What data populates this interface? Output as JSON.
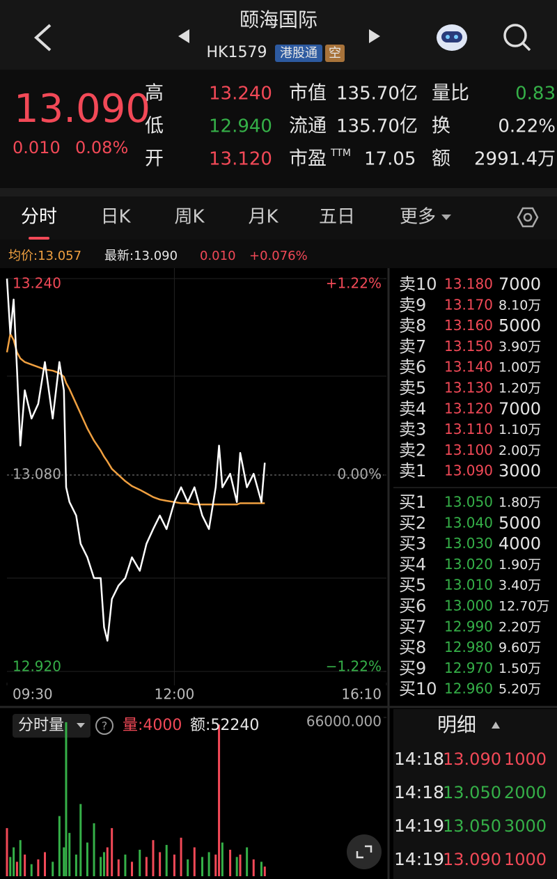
{
  "header": {
    "title": "颐海国际",
    "code": "HK1579",
    "tags": [
      {
        "text": "港股通",
        "color": "#2d5aa0"
      },
      {
        "text": "空",
        "color": "#a8733a"
      }
    ]
  },
  "quote": {
    "price": "13.090",
    "change": "0.010",
    "change_pct": "0.08%",
    "color": "#f24957",
    "stats": [
      [
        {
          "label": "高",
          "value": "13.240",
          "color": "#f24957"
        },
        {
          "label": "市值",
          "value": "135.70亿"
        },
        {
          "label": "量比",
          "value": "0.83",
          "color": "#35b048"
        }
      ],
      [
        {
          "label": "低",
          "value": "12.940",
          "color": "#35b048"
        },
        {
          "label": "流通",
          "value": "135.70亿"
        },
        {
          "label": "换",
          "value": "0.22%"
        }
      ],
      [
        {
          "label": "开",
          "value": "13.120",
          "color": "#f24957"
        },
        {
          "label": "市盈",
          "sup": "TTM",
          "value": "17.05"
        },
        {
          "label": "额",
          "value": "2991.4万"
        }
      ]
    ]
  },
  "tabs": {
    "items": [
      "分时",
      "日K",
      "周K",
      "月K",
      "五日",
      "更多"
    ],
    "active": 0
  },
  "info": {
    "avg": "均价:13.057",
    "last": "最新:13.090",
    "change": "0.010",
    "change_pct": "+0.076%"
  },
  "chart_data": [
    {
      "type": "line",
      "xlim": [
        0,
        340
      ],
      "xticks": [
        {
          "value": 0,
          "label": "09:30"
        },
        {
          "value": 150,
          "label": "12:00"
        },
        {
          "value": 340,
          "label": "16:10"
        }
      ],
      "ylim": [
        12.92,
        13.24
      ],
      "yticks": [
        {
          "value": 13.24,
          "label": "13.240"
        },
        {
          "value": 13.08,
          "label": "13.080"
        },
        {
          "value": 12.92,
          "label": "12.920"
        }
      ],
      "y2lim": [
        -1.22,
        1.22
      ],
      "y2ticks": [
        {
          "value": 1.22,
          "label": "+1.22%"
        },
        {
          "value": 0,
          "label": "0.00%"
        },
        {
          "value": -1.22,
          "label": "−1.22%"
        }
      ],
      "x": [
        0,
        3,
        6,
        9,
        12,
        16,
        22,
        28,
        34,
        41,
        47,
        51,
        53,
        56,
        62,
        66,
        72,
        78,
        84,
        87,
        90,
        94,
        100,
        106,
        112,
        119,
        125,
        131,
        137,
        143,
        150,
        156,
        162,
        168,
        175,
        181,
        187,
        190,
        193,
        200,
        206,
        209,
        215,
        221,
        228,
        231
      ],
      "series": [
        {
          "color": "#ffffff",
          "values": [
            13.24,
            13.195,
            13.223,
            13.166,
            13.104,
            13.149,
            13.126,
            13.138,
            13.172,
            13.126,
            13.172,
            13.149,
            13.07,
            13.058,
            13.047,
            13.024,
            13.013,
            12.996,
            12.996,
            12.956,
            12.945,
            12.979,
            12.99,
            12.996,
            13.013,
            13.002,
            13.024,
            13.036,
            13.047,
            13.036,
            13.058,
            13.07,
            13.058,
            13.07,
            13.047,
            13.036,
            13.07,
            13.104,
            13.07,
            13.081,
            13.058,
            13.098,
            13.07,
            13.081,
            13.058,
            13.09
          ]
        },
        {
          "color": "#f0a040",
          "values": [
            13.18,
            13.195,
            13.19,
            13.18,
            13.175,
            13.172,
            13.17,
            13.168,
            13.166,
            13.165,
            13.163,
            13.16,
            13.155,
            13.15,
            13.138,
            13.13,
            13.118,
            13.108,
            13.1,
            13.095,
            13.091,
            13.085,
            13.08,
            13.075,
            13.071,
            13.068,
            13.065,
            13.062,
            13.06,
            13.059,
            13.058,
            13.057,
            13.057,
            13.056,
            13.056,
            13.056,
            13.056,
            13.056,
            13.056,
            13.056,
            13.056,
            13.057,
            13.057,
            13.057,
            13.057,
            13.057
          ]
        }
      ]
    },
    {
      "type": "bar",
      "title": "分时量",
      "labels": [
        "量:4000",
        "额:52240"
      ],
      "xlim": [
        0,
        340
      ],
      "ylim": [
        0,
        66000
      ],
      "yticks": [
        {
          "value": 66000,
          "label": "66000.000"
        }
      ],
      "x": [
        0,
        3,
        6,
        9,
        12,
        16,
        22,
        28,
        34,
        41,
        47,
        51,
        53,
        56,
        62,
        66,
        72,
        78,
        84,
        87,
        90,
        94,
        100,
        106,
        112,
        119,
        125,
        131,
        137,
        143,
        150,
        156,
        162,
        168,
        175,
        181,
        187,
        190,
        193,
        200,
        206,
        209,
        215,
        221,
        228,
        231
      ],
      "values": [
        20000,
        8000,
        12000,
        6000,
        15000,
        9000,
        5000,
        7000,
        10000,
        6000,
        25000,
        12000,
        64000,
        18000,
        9000,
        30000,
        14000,
        22000,
        8000,
        10000,
        12000,
        20000,
        7000,
        9000,
        6000,
        11000,
        8000,
        15000,
        10000,
        13000,
        9000,
        16000,
        7000,
        12000,
        8000,
        10000,
        9000,
        63000,
        14000,
        11000,
        8000,
        9000,
        12000,
        7000,
        6000,
        4000
      ],
      "colors": [
        "#f24957",
        "#35b048",
        "#35b048",
        "#f24957",
        "#35b048",
        "#f24957",
        "#35b048",
        "#f24957",
        "#f24957",
        "#35b048",
        "#35b048",
        "#35b048",
        "#35b048",
        "#35b048",
        "#35b048",
        "#35b048",
        "#35b048",
        "#35b048",
        "#35b048",
        "#35b048",
        "#f24957",
        "#f24957",
        "#f24957",
        "#35b048",
        "#f24957",
        "#35b048",
        "#f24957",
        "#f24957",
        "#f24957",
        "#35b048",
        "#f24957",
        "#f24957",
        "#35b048",
        "#f24957",
        "#35b048",
        "#35b048",
        "#f24957",
        "#f24957",
        "#35b048",
        "#f24957",
        "#35b048",
        "#f24957",
        "#35b048",
        "#f24957",
        "#35b048",
        "#f24957"
      ]
    }
  ],
  "order_book": {
    "asks": [
      {
        "label": "卖10",
        "price": "13.180",
        "volume": "7000",
        "color": "#f24957"
      },
      {
        "label": "卖9",
        "price": "13.170",
        "volume": "8.10万",
        "color": "#f24957"
      },
      {
        "label": "卖8",
        "price": "13.160",
        "volume": "5000",
        "color": "#f24957"
      },
      {
        "label": "卖7",
        "price": "13.150",
        "volume": "3.90万",
        "color": "#f24957"
      },
      {
        "label": "卖6",
        "price": "13.140",
        "volume": "1.00万",
        "color": "#f24957"
      },
      {
        "label": "卖5",
        "price": "13.130",
        "volume": "1.20万",
        "color": "#f24957"
      },
      {
        "label": "卖4",
        "price": "13.120",
        "volume": "7000",
        "color": "#f24957"
      },
      {
        "label": "卖3",
        "price": "13.110",
        "volume": "1.10万",
        "color": "#f24957"
      },
      {
        "label": "卖2",
        "price": "13.100",
        "volume": "2.00万",
        "color": "#f24957"
      },
      {
        "label": "卖1",
        "price": "13.090",
        "volume": "3000",
        "color": "#f24957"
      }
    ],
    "bids": [
      {
        "label": "买1",
        "price": "13.050",
        "volume": "1.80万",
        "color": "#35b048"
      },
      {
        "label": "买2",
        "price": "13.040",
        "volume": "5000",
        "color": "#35b048"
      },
      {
        "label": "买3",
        "price": "13.030",
        "volume": "4000",
        "color": "#35b048"
      },
      {
        "label": "买4",
        "price": "13.020",
        "volume": "1.90万",
        "color": "#35b048"
      },
      {
        "label": "买5",
        "price": "13.010",
        "volume": "3.40万",
        "color": "#35b048"
      },
      {
        "label": "买6",
        "price": "13.000",
        "volume": "12.70万",
        "color": "#35b048"
      },
      {
        "label": "买7",
        "price": "12.990",
        "volume": "2.20万",
        "color": "#35b048"
      },
      {
        "label": "买8",
        "price": "12.980",
        "volume": "9.60万",
        "color": "#35b048"
      },
      {
        "label": "买9",
        "price": "12.970",
        "volume": "1.50万",
        "color": "#35b048"
      },
      {
        "label": "买10",
        "price": "12.960",
        "volume": "5.20万",
        "color": "#35b048"
      }
    ]
  },
  "trades": {
    "title": "明细",
    "rows": [
      {
        "time": "14:18",
        "price": "13.090",
        "volume": "1000",
        "color": "#f24957"
      },
      {
        "time": "14:18",
        "price": "13.050",
        "volume": "2000",
        "color": "#35b048"
      },
      {
        "time": "14:19",
        "price": "13.050",
        "volume": "3000",
        "color": "#35b048"
      },
      {
        "time": "14:19",
        "price": "13.090",
        "volume": "1000",
        "color": "#f24957"
      }
    ]
  }
}
